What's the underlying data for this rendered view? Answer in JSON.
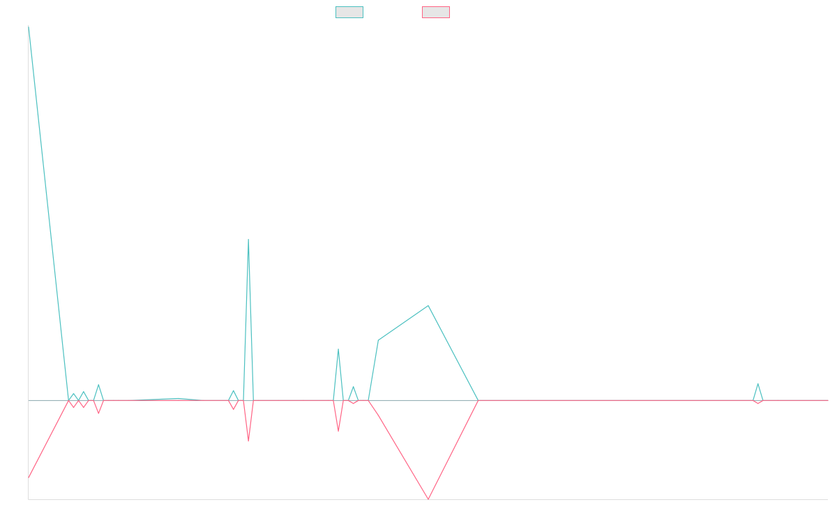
{
  "chart_data": {
    "type": "line",
    "title": "",
    "xlabel": "",
    "ylabel": "",
    "grid": false,
    "legend_position": "top-center",
    "x": [
      0,
      8,
      9,
      10,
      11,
      12,
      13,
      14,
      15,
      16,
      17,
      18,
      20,
      30,
      35,
      40,
      41,
      42,
      43,
      44,
      45,
      46,
      50,
      55,
      60,
      61,
      62,
      63,
      64,
      65,
      66,
      67,
      68,
      70,
      80,
      90,
      100,
      120,
      145,
      146,
      147,
      150,
      160
    ],
    "ylim": [
      -100,
      380
    ],
    "series": [
      {
        "name": "",
        "color": "#4bc0c0",
        "values": [
          378,
          0,
          7,
          0,
          9,
          0,
          0,
          16,
          0,
          0,
          0,
          0,
          0,
          2,
          0,
          0,
          10,
          0,
          0,
          163,
          0,
          0,
          0,
          0,
          0,
          0,
          52,
          0,
          0,
          14,
          0,
          0,
          0,
          61,
          96,
          0,
          0,
          0,
          0,
          17,
          0,
          0,
          0
        ]
      },
      {
        "name": "",
        "color": "#ff6384",
        "values": [
          -78,
          0,
          -7,
          0,
          -7,
          0,
          0,
          -13,
          0,
          0,
          0,
          0,
          0,
          0,
          0,
          0,
          -9,
          0,
          0,
          -41,
          0,
          0,
          0,
          0,
          0,
          0,
          -31,
          0,
          0,
          -3,
          0,
          0,
          0,
          -15,
          -100,
          0,
          0,
          0,
          0,
          -3,
          0,
          0,
          0
        ]
      }
    ]
  }
}
